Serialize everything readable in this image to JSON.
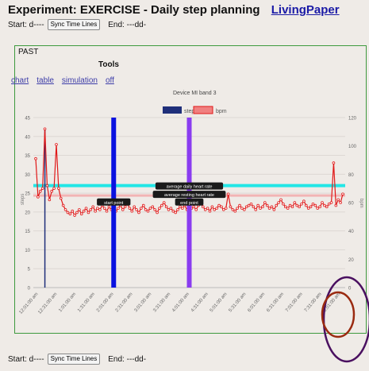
{
  "header": {
    "title": "Experiment: EXERCISE - Daily step planning",
    "link": "LivingPaper"
  },
  "time_controls": {
    "start_label": "Start: d----",
    "sync_button": "Sync Time Lines",
    "end_label": "End: ---dd-"
  },
  "panel": {
    "past_label": "PAST",
    "tools_label": "Tools",
    "tool_links": [
      "chart",
      "table",
      "simulation",
      "off"
    ]
  },
  "bottom_controls": {
    "start_label": "Start: d----",
    "sync_button": "Sync Time Lines",
    "end_label": "End: ---dd-"
  },
  "chart_data": {
    "type": "bar+line",
    "title": "Device MI band 3",
    "legend": [
      "steps",
      "bpm"
    ],
    "legend_colors": [
      "#1f2f7a",
      "#f08080"
    ],
    "ylabel_left": "steps",
    "ylabel_right": "bpm",
    "y_left_ticks": [
      0,
      5,
      10,
      15,
      20,
      25,
      30,
      35,
      40,
      45
    ],
    "y_right_ticks": [
      0,
      20,
      40,
      60,
      80,
      100,
      120
    ],
    "ylim_left": [
      0,
      45
    ],
    "ylim_right": [
      0,
      120
    ],
    "x_ticks": [
      "12:01:00 am",
      "12:31:00 am",
      "1:01:00 am",
      "1:31:00 am",
      "2:01:00 am",
      "2:31:00 am",
      "3:01:00 am",
      "3:31:00 am",
      "4:01:00 am",
      "4:31:00 am",
      "5:01:00 am",
      "5:31:00 am",
      "6:01:00 am",
      "6:31:00 am",
      "7:01:00 am",
      "7:31:00 am",
      "8:01:00 am"
    ],
    "steps_bar": {
      "x": "12:31:00 am",
      "value": 42
    },
    "average_daily_hr": 72,
    "average_resting_hr": 65,
    "bpm_series": [
      91,
      64,
      68,
      70,
      112,
      72,
      62,
      68,
      70,
      101,
      70,
      63,
      58,
      55,
      53,
      52,
      54,
      51,
      53,
      55,
      52,
      54,
      56,
      53,
      55,
      57,
      54,
      56,
      55,
      58,
      56,
      54,
      57,
      55,
      53,
      54,
      56,
      58,
      55,
      57,
      59,
      56,
      54,
      57,
      55,
      53,
      56,
      58,
      55,
      54,
      56,
      57,
      55,
      53,
      56,
      58,
      60,
      57,
      55,
      56,
      54,
      53,
      55,
      57,
      56,
      58,
      55,
      54,
      56,
      57,
      55,
      58,
      60,
      57,
      55,
      56,
      54,
      57,
      55,
      56,
      58,
      57,
      55,
      56,
      66,
      57,
      55,
      54,
      56,
      58,
      56,
      55,
      57,
      58,
      59,
      57,
      55,
      58,
      56,
      57,
      60,
      58,
      56,
      57,
      55,
      58,
      60,
      62,
      59,
      57,
      56,
      58,
      57,
      60,
      58,
      57,
      59,
      61,
      58,
      56,
      57,
      59,
      58,
      56,
      57,
      60,
      58,
      57,
      59,
      60,
      88,
      58,
      62,
      60,
      66
    ],
    "markers": [
      {
        "label": "start point",
        "x": "2:01:00 am",
        "color": "#0a12e0"
      },
      {
        "label": "end point",
        "x": "4:01:00 am",
        "color": "#8a3cf0"
      }
    ],
    "annotations": [
      "average daily heart rate",
      "average resting heart rate"
    ]
  },
  "colors": {
    "daily_line": "#22e6e6",
    "resting_line": "#f2b4b4",
    "bpm_line": "#e01818",
    "panel_border": "#3e9a3e",
    "circle_outer": "#4a1060",
    "circle_inner": "#9a2a10"
  }
}
